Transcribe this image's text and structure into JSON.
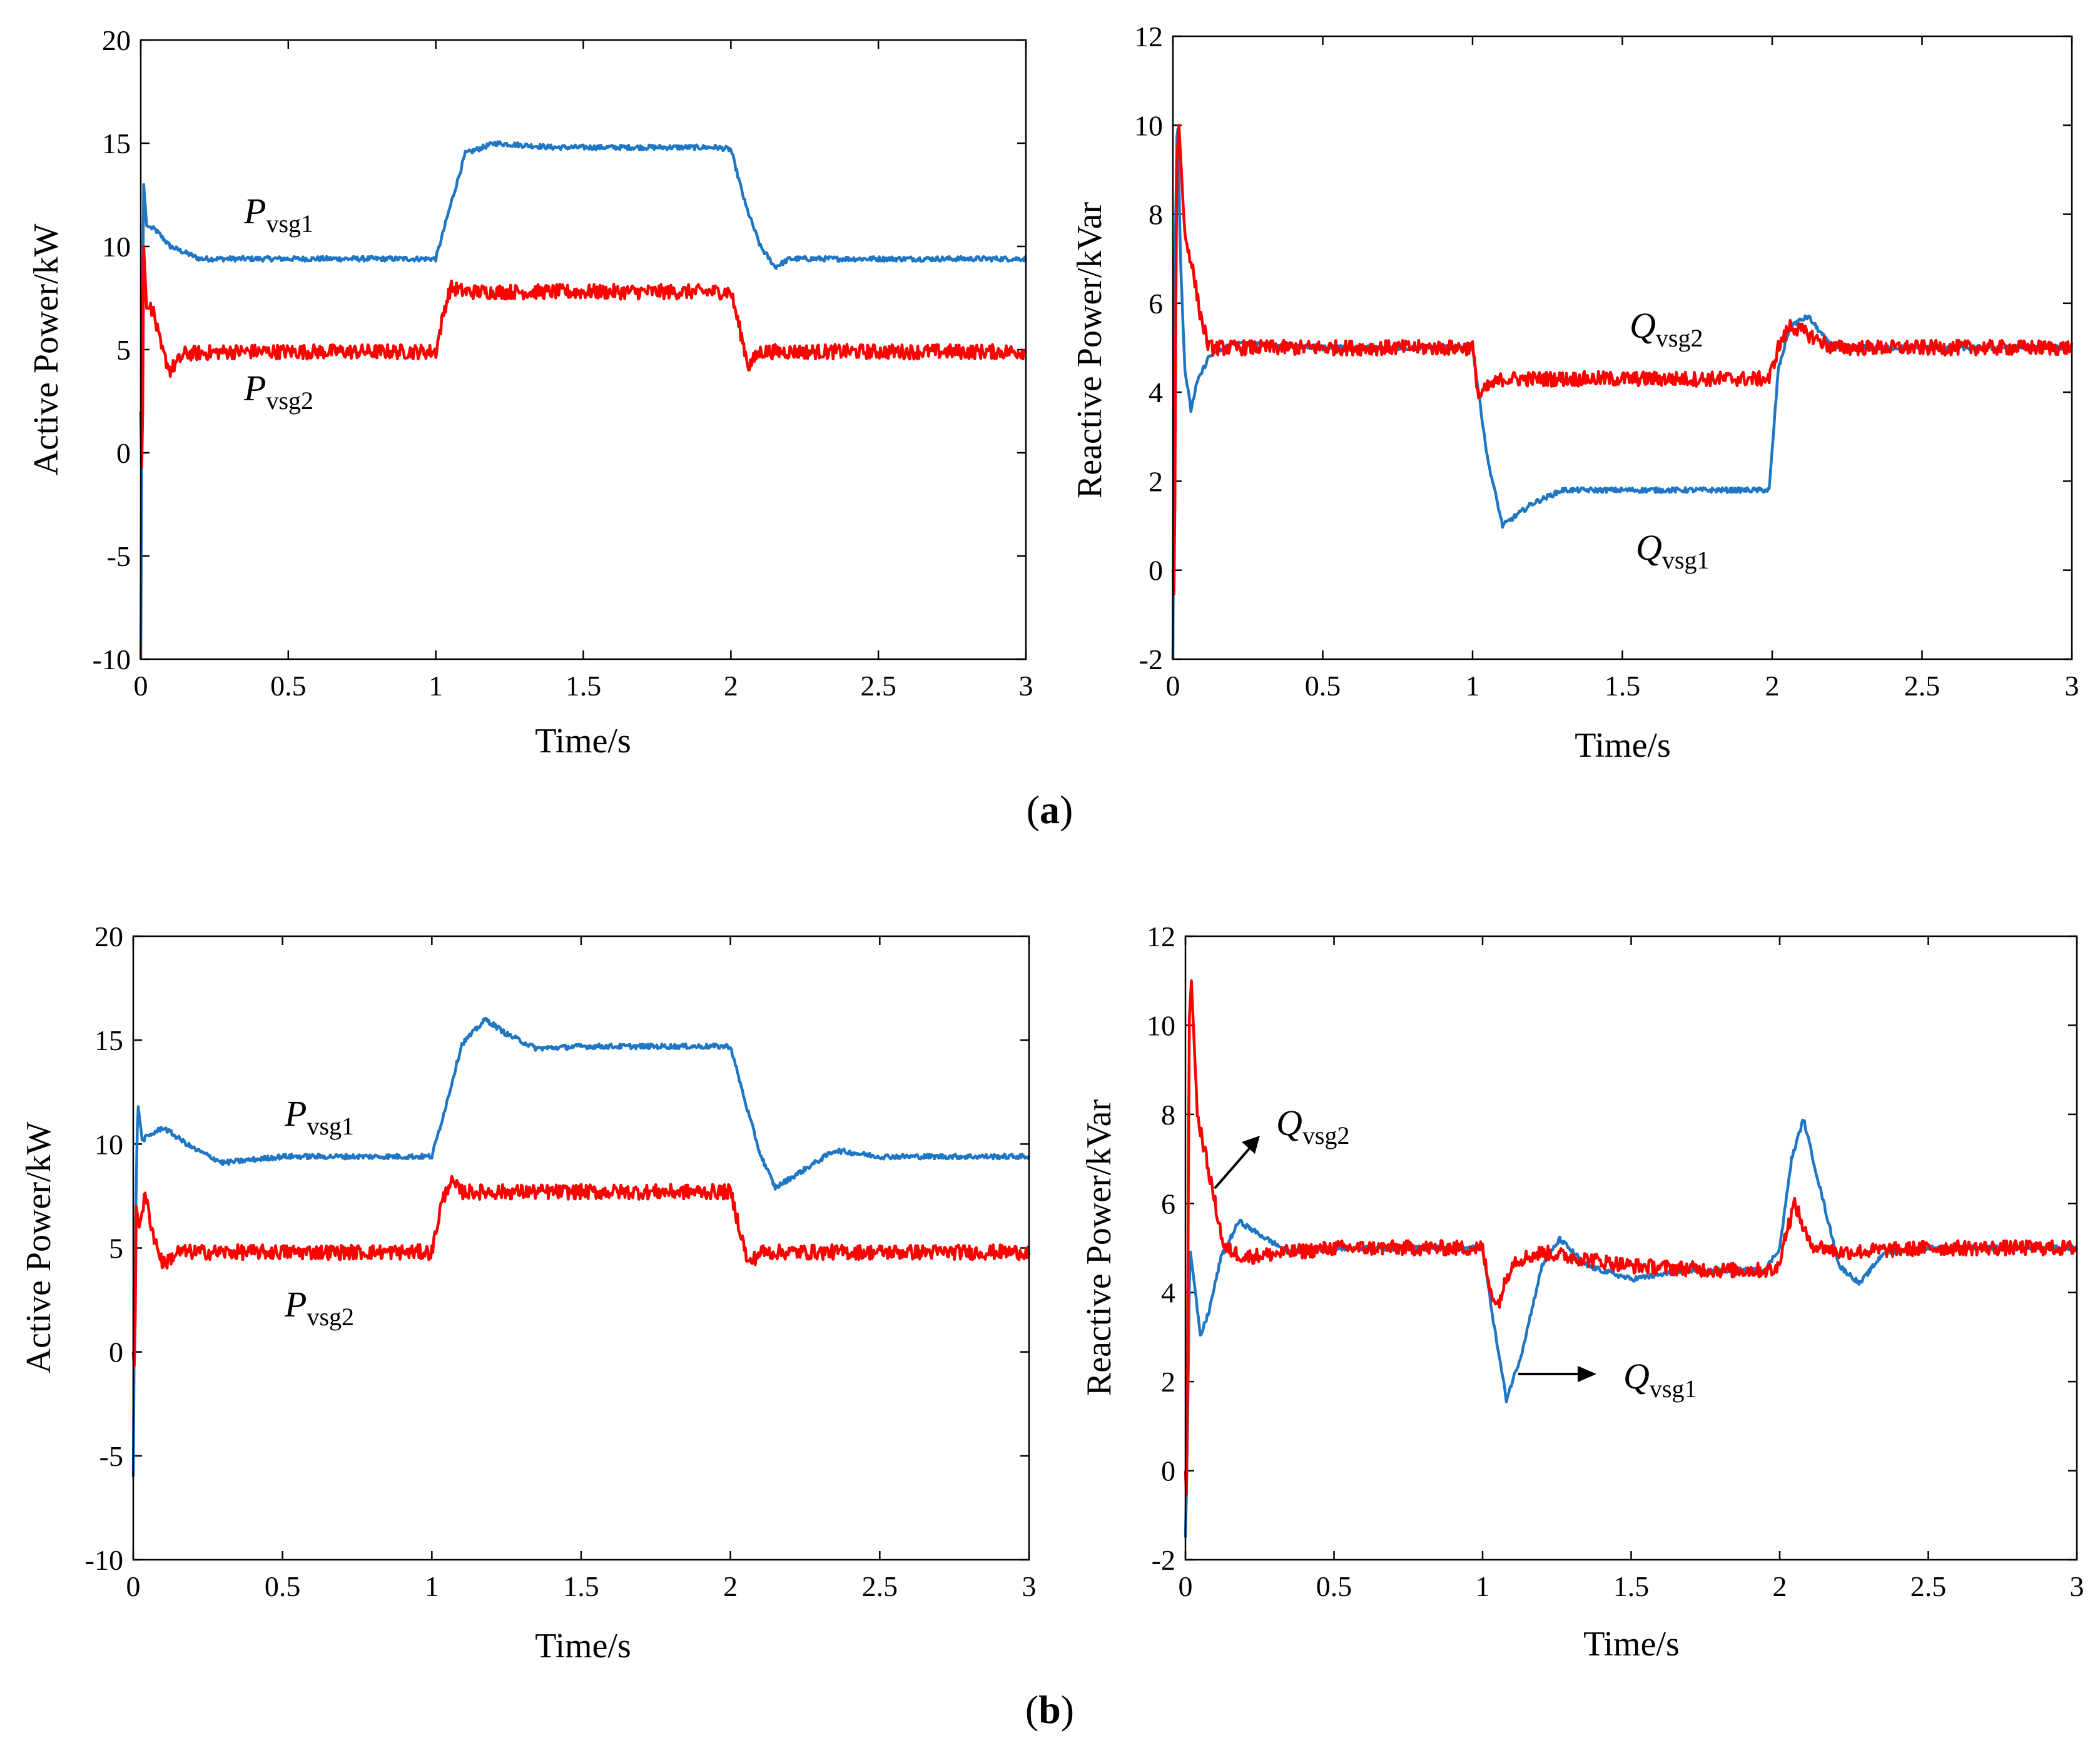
{
  "figure": {
    "caption_a": {
      "open": "(",
      "letter": "a",
      "close": ")"
    },
    "caption_b": {
      "open": "(",
      "letter": "b",
      "close": ")"
    }
  },
  "colors": {
    "series1": "#1f77c4",
    "series2": "#ff0000"
  },
  "chart_data": [
    {
      "id": "a-left",
      "type": "line",
      "xlabel": "Time/s",
      "ylabel": "Active Power/kW",
      "xlim": [
        0,
        3
      ],
      "ylim": [
        -10,
        20
      ],
      "xticks": [
        "0",
        "0.5",
        "1",
        "1.5",
        "2",
        "2.5",
        "3"
      ],
      "yticks": [
        "-10",
        "-5",
        "0",
        "5",
        "10",
        "15",
        "20"
      ],
      "series": [
        {
          "name": "Pvsg1",
          "color": "#1f77c4",
          "x": [
            0,
            0.005,
            0.01,
            0.02,
            0.05,
            0.1,
            0.2,
            0.3,
            0.5,
            0.8,
            1.0,
            1.05,
            1.1,
            1.2,
            1.4,
            1.6,
            1.8,
            1.95,
            2.0,
            2.05,
            2.1,
            2.15,
            2.2,
            2.5,
            3.0
          ],
          "y": [
            -10,
            5,
            13,
            11,
            10.8,
            10,
            9.4,
            9.4,
            9.4,
            9.4,
            9.4,
            12,
            14.5,
            15,
            14.8,
            14.8,
            14.8,
            14.8,
            14.7,
            12,
            10,
            9,
            9.4,
            9.4,
            9.4
          ]
        },
        {
          "name": "Pvsg2",
          "color": "#ff0000",
          "x": [
            0,
            0.005,
            0.01,
            0.02,
            0.04,
            0.07,
            0.1,
            0.15,
            0.3,
            0.6,
            1.0,
            1.03,
            1.05,
            1.1,
            1.5,
            2.0,
            2.03,
            2.06,
            2.1,
            2.3,
            3.0
          ],
          "y": [
            2,
            -2,
            10,
            7,
            7,
            5,
            4,
            4.8,
            4.9,
            4.9,
            4.9,
            7,
            8,
            7.8,
            7.8,
            7.8,
            6,
            4.2,
            4.9,
            4.9,
            4.9
          ]
        }
      ],
      "annotations": [
        {
          "letter": "P",
          "sub": "vsg1",
          "x": 0.35,
          "y": 11.5
        },
        {
          "letter": "P",
          "sub": "vsg2",
          "x": 0.35,
          "y": 2.5
        }
      ]
    },
    {
      "id": "a-right",
      "type": "line",
      "xlabel": "Time/s",
      "ylabel": "Reactive Power/kVar",
      "xlim": [
        0,
        3
      ],
      "ylim": [
        -2,
        12
      ],
      "xticks": [
        "0",
        "0.5",
        "1",
        "1.5",
        "2",
        "2.5",
        "3"
      ],
      "yticks": [
        "-2",
        "0",
        "2",
        "4",
        "6",
        "8",
        "10",
        "12"
      ],
      "series": [
        {
          "name": "Qvsg1",
          "color": "#1f77c4",
          "x": [
            0,
            0.005,
            0.015,
            0.025,
            0.04,
            0.06,
            0.08,
            0.12,
            0.2,
            0.5,
            0.8,
            1.0,
            1.05,
            1.1,
            1.2,
            1.3,
            1.6,
            1.99,
            2.02,
            2.06,
            2.12,
            2.2,
            2.5,
            3.0
          ],
          "y": [
            -2,
            6,
            10.5,
            7,
            4.5,
            3.6,
            4.2,
            4.8,
            5.1,
            5.0,
            5.0,
            5.0,
            2.5,
            1.0,
            1.5,
            1.8,
            1.8,
            1.8,
            4.5,
            5.5,
            5.7,
            5.0,
            5.0,
            5.0
          ]
        },
        {
          "name": "Qvsg2",
          "color": "#ff0000",
          "x": [
            0,
            0.005,
            0.012,
            0.02,
            0.04,
            0.06,
            0.09,
            0.12,
            0.2,
            0.5,
            0.8,
            1.0,
            1.02,
            1.05,
            1.1,
            1.3,
            1.6,
            1.99,
            2.02,
            2.06,
            2.12,
            2.2,
            2.5,
            3.0
          ],
          "y": [
            0,
            -0.8,
            9,
            10,
            7.5,
            7.0,
            5.8,
            5.0,
            5.0,
            5.0,
            5.0,
            5.0,
            3.9,
            4.1,
            4.3,
            4.3,
            4.3,
            4.3,
            5.0,
            5.5,
            5.3,
            5.0,
            5.0,
            5.0
          ]
        }
      ],
      "annotations": [
        {
          "letter": "Q",
          "sub": "vsg2",
          "x": 1.5,
          "y": 5.6
        },
        {
          "letter": "Q",
          "sub": "vsg1",
          "x": 1.55,
          "y": 0.4
        }
      ]
    },
    {
      "id": "b-left",
      "type": "line",
      "xlabel": "Time/s",
      "ylabel": "Active Power/kW",
      "xlim": [
        0,
        3
      ],
      "ylim": [
        -10,
        20
      ],
      "xticks": [
        "0",
        "0.5",
        "1",
        "1.5",
        "2",
        "2.5",
        "3"
      ],
      "yticks": [
        "-10",
        "-5",
        "0",
        "5",
        "10",
        "15",
        "20"
      ],
      "series": [
        {
          "name": "Pvsg1",
          "color": "#1f77c4",
          "x": [
            0,
            0.005,
            0.015,
            0.03,
            0.1,
            0.2,
            0.3,
            0.5,
            0.8,
            1.0,
            1.05,
            1.1,
            1.18,
            1.25,
            1.35,
            1.5,
            1.8,
            2.0,
            2.05,
            2.1,
            2.15,
            2.25,
            2.35,
            2.5,
            3.0
          ],
          "y": [
            -6,
            4,
            12,
            10.2,
            10.8,
            9.8,
            9.1,
            9.4,
            9.4,
            9.4,
            12,
            14.8,
            16,
            15.3,
            14.6,
            14.7,
            14.7,
            14.7,
            12,
            9.5,
            7.9,
            8.8,
            9.7,
            9.4,
            9.4
          ]
        },
        {
          "name": "Pvsg2",
          "color": "#ff0000",
          "x": [
            0,
            0.005,
            0.01,
            0.02,
            0.04,
            0.07,
            0.1,
            0.15,
            0.3,
            0.6,
            1.0,
            1.03,
            1.06,
            1.1,
            1.5,
            2.0,
            2.03,
            2.06,
            2.1,
            2.3,
            3.0
          ],
          "y": [
            0,
            -1,
            7,
            6,
            7.5,
            5.5,
            4.2,
            4.8,
            4.8,
            4.8,
            4.8,
            7,
            8.2,
            7.7,
            7.7,
            7.7,
            6,
            4.2,
            4.8,
            4.8,
            4.8
          ]
        }
      ],
      "annotations": [
        {
          "letter": "P",
          "sub": "vsg1",
          "x": 0.5,
          "y": 11.5
        },
        {
          "letter": "P",
          "sub": "vsg2",
          "x": 0.5,
          "y": 2.5
        }
      ]
    },
    {
      "id": "b-right",
      "type": "line",
      "xlabel": "Time/s",
      "ylabel": "Reactive Power/kVar",
      "xlim": [
        0,
        3
      ],
      "ylim": [
        -2,
        12
      ],
      "xticks": [
        "0",
        "0.5",
        "1",
        "1.5",
        "2",
        "2.5",
        "3"
      ],
      "yticks": [
        "-2",
        "0",
        "2",
        "4",
        "6",
        "8",
        "10",
        "12"
      ],
      "series": [
        {
          "name": "Qvsg1",
          "color": "#1f77c4",
          "x": [
            0,
            0.005,
            0.015,
            0.03,
            0.05,
            0.08,
            0.12,
            0.18,
            0.25,
            0.35,
            0.5,
            0.8,
            1.0,
            1.04,
            1.08,
            1.13,
            1.2,
            1.26,
            1.35,
            1.5,
            1.7,
            1.95,
            2.0,
            2.04,
            2.08,
            2.13,
            2.2,
            2.27,
            2.35,
            2.5,
            3.0
          ],
          "y": [
            -1.5,
            0,
            5,
            4.2,
            3.0,
            3.6,
            4.8,
            5.6,
            5.3,
            4.9,
            5.0,
            5.0,
            5.0,
            3.2,
            1.6,
            2.6,
            4.6,
            5.2,
            4.6,
            4.3,
            4.5,
            4.5,
            5.0,
            7.0,
            7.9,
            6.5,
            4.6,
            4.2,
            4.9,
            5.0,
            5.0
          ]
        },
        {
          "name": "Qvsg2",
          "color": "#ff0000",
          "x": [
            0,
            0.005,
            0.012,
            0.02,
            0.04,
            0.07,
            0.1,
            0.13,
            0.2,
            0.5,
            0.8,
            1.0,
            1.02,
            1.05,
            1.1,
            1.2,
            1.5,
            1.8,
            1.99,
            2.02,
            2.05,
            2.1,
            2.2,
            2.5,
            3.0
          ],
          "y": [
            0,
            -0.8,
            10,
            11,
            8,
            7,
            6,
            5.0,
            4.8,
            5.0,
            5.0,
            5.0,
            4.2,
            3.7,
            4.7,
            4.9,
            4.6,
            4.5,
            4.5,
            5.3,
            6.0,
            5.1,
            4.9,
            5.0,
            5.0
          ]
        }
      ],
      "annotations": [
        {
          "letter": "Q",
          "sub": "vsg2",
          "x": 0.3,
          "y": 7.8
        },
        {
          "letter": "Q",
          "sub": "vsg1",
          "x": 1.45,
          "y": 2.9
        }
      ],
      "arrows": [
        "up-right",
        "right"
      ]
    }
  ]
}
